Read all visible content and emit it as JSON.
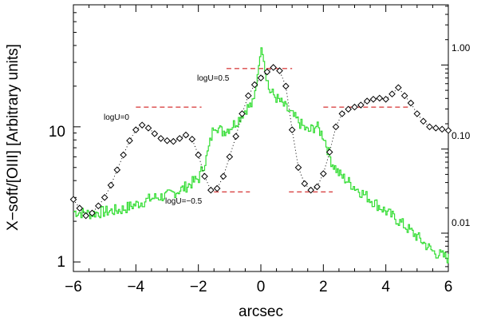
{
  "chart_data": {
    "type": "line",
    "xlabel": "arcsec",
    "ylabel": "X−soft/[OIII] [Arbitrary units]",
    "xlim": [
      -6,
      6
    ],
    "ylim_left": [
      0.85,
      80
    ],
    "ylim_right": [
      0.0035,
      5.2
    ],
    "y_scale": "log",
    "grid": false,
    "x_ticks": [
      -6,
      -4,
      -2,
      0,
      2,
      4,
      6
    ],
    "x_tick_labels": [
      "−6",
      "−4",
      "−2",
      "0",
      "2",
      "4",
      "6"
    ],
    "y_left_ticks": [
      1,
      10
    ],
    "y_left_tick_labels": [
      "1",
      "10"
    ],
    "y_right_ticks": [
      0.01,
      0.1,
      1.0
    ],
    "y_right_tick_labels": [
      "0.01",
      "0.10",
      "1.00"
    ],
    "colors": {
      "profile": "#33dd33",
      "ratio": "#000000",
      "levels": "#cc0000"
    },
    "series": [
      {
        "axis": "right",
        "style": "step",
        "color": "#33dd33",
        "x": [
          -6.0,
          -5.5,
          -5.0,
          -4.5,
          -4.0,
          -3.5,
          -3.0,
          -2.5,
          -2.0,
          -1.75,
          -1.5,
          -1.25,
          -1.0,
          -0.75,
          -0.5,
          -0.25,
          0.0,
          0.25,
          0.5,
          0.75,
          1.0,
          1.25,
          1.5,
          1.75,
          2.0,
          2.25,
          2.5,
          3.0,
          3.5,
          4.0,
          4.5,
          5.0,
          5.5,
          6.0
        ],
        "values": [
          0.018,
          0.017,
          0.018,
          0.019,
          0.022,
          0.026,
          0.028,
          0.034,
          0.045,
          0.08,
          0.2,
          0.16,
          0.18,
          0.22,
          0.3,
          0.35,
          1.6,
          0.5,
          0.4,
          0.32,
          0.25,
          0.2,
          0.16,
          0.19,
          0.14,
          0.07,
          0.05,
          0.035,
          0.025,
          0.018,
          0.013,
          0.009,
          0.006,
          0.005
        ]
      },
      {
        "axis": "left",
        "style": "dotted-diamonds",
        "color": "#000000",
        "x": [
          -6.0,
          -5.8,
          -5.6,
          -5.4,
          -5.2,
          -5.0,
          -4.8,
          -4.6,
          -4.4,
          -4.2,
          -4.0,
          -3.8,
          -3.6,
          -3.4,
          -3.2,
          -3.0,
          -2.8,
          -2.6,
          -2.4,
          -2.2,
          -2.0,
          -1.8,
          -1.6,
          -1.4,
          -1.2,
          -1.0,
          -0.8,
          -0.6,
          -0.4,
          -0.2,
          0.0,
          0.2,
          0.4,
          0.6,
          0.8,
          1.0,
          1.2,
          1.4,
          1.6,
          1.8,
          2.0,
          2.2,
          2.4,
          2.6,
          2.8,
          3.0,
          3.2,
          3.4,
          3.6,
          3.8,
          4.0,
          4.2,
          4.4,
          4.6,
          4.8,
          5.0,
          5.2,
          5.4,
          5.6,
          5.8,
          6.0
        ],
        "values": [
          2.9,
          2.5,
          2.2,
          2.3,
          2.6,
          3.0,
          3.7,
          4.8,
          6.2,
          7.9,
          9.5,
          10.3,
          9.8,
          8.9,
          8.2,
          7.9,
          7.8,
          8.2,
          8.7,
          8.1,
          6.2,
          4.3,
          3.4,
          3.5,
          4.3,
          6.0,
          8.5,
          12.5,
          17.0,
          20.5,
          23.0,
          25.5,
          27.5,
          26.0,
          20.0,
          9.5,
          5.0,
          3.8,
          3.4,
          3.6,
          4.5,
          6.5,
          10.0,
          12.5,
          13.5,
          14.0,
          14.5,
          15.5,
          16.0,
          16.3,
          16.0,
          17.5,
          19.5,
          17.0,
          15.0,
          12.5,
          11.0,
          10.0,
          9.8,
          9.6,
          9.4
        ]
      }
    ],
    "levels": [
      {
        "label": "logU=0",
        "y": 14.0,
        "x_start": -4.0,
        "x_end": -1.9
      },
      {
        "label": "logU=0.5",
        "y": 27.0,
        "x_start": -1.1,
        "x_end": 1.0
      },
      {
        "label": "logU=−0.5",
        "y": 3.3,
        "x_start": -1.5,
        "x_end": -0.35
      },
      {
        "label": "",
        "y": 3.3,
        "x_start": 0.9,
        "x_end": 2.3
      },
      {
        "label": "",
        "y": 14.0,
        "x_start": 2.0,
        "x_end": 4.8
      }
    ]
  }
}
